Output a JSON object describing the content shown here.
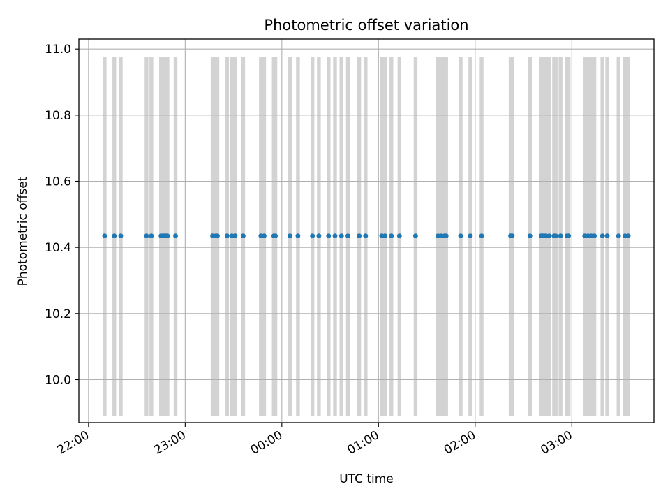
{
  "chart_data": {
    "type": "scatter",
    "title": "Photometric offset variation",
    "xlabel": "UTC time",
    "ylabel": "Photometric offset",
    "x_tick_labels": [
      "22:00",
      "23:00",
      "00:00",
      "01:00",
      "02:00",
      "03:00"
    ],
    "y_tick_labels": [
      "10.0",
      "10.2",
      "10.4",
      "10.6",
      "10.8",
      "11.0"
    ],
    "y_ticks": [
      10.0,
      10.2,
      10.4,
      10.6,
      10.8,
      11.0
    ],
    "ylim": [
      9.87,
      11.03
    ],
    "xlim": [
      "21:54",
      "03:51"
    ],
    "grid": true,
    "colors": {
      "points": "#1f77b4",
      "bars": "#d3d3d3",
      "grid": "#b0b0b0"
    },
    "bar_range": [
      9.89,
      10.975
    ],
    "series": [
      {
        "values": [
          {
            "x": "22:10",
            "y": 10.435
          },
          {
            "x": "22:16",
            "y": 10.435
          },
          {
            "x": "22:20",
            "y": 10.435
          },
          {
            "x": "22:36",
            "y": 10.435
          },
          {
            "x": "22:39",
            "y": 10.435
          },
          {
            "x": "22:45",
            "y": 10.435
          },
          {
            "x": "22:46",
            "y": 10.435
          },
          {
            "x": "22:47",
            "y": 10.435
          },
          {
            "x": "22:48",
            "y": 10.435
          },
          {
            "x": "22:49",
            "y": 10.435
          },
          {
            "x": "22:54",
            "y": 10.435
          },
          {
            "x": "23:17",
            "y": 10.435
          },
          {
            "x": "23:19",
            "y": 10.435
          },
          {
            "x": "23:20",
            "y": 10.435
          },
          {
            "x": "23:26",
            "y": 10.435
          },
          {
            "x": "23:29",
            "y": 10.435
          },
          {
            "x": "23:31",
            "y": 10.435
          },
          {
            "x": "23:36",
            "y": 10.435
          },
          {
            "x": "23:47",
            "y": 10.435
          },
          {
            "x": "23:49",
            "y": 10.435
          },
          {
            "x": "23:55",
            "y": 10.435
          },
          {
            "x": "23:56",
            "y": 10.435
          },
          {
            "x": "00:05",
            "y": 10.435
          },
          {
            "x": "00:10",
            "y": 10.435
          },
          {
            "x": "00:19",
            "y": 10.435
          },
          {
            "x": "00:23",
            "y": 10.435
          },
          {
            "x": "00:29",
            "y": 10.435
          },
          {
            "x": "00:33",
            "y": 10.435
          },
          {
            "x": "00:37",
            "y": 10.435
          },
          {
            "x": "00:41",
            "y": 10.435
          },
          {
            "x": "00:48",
            "y": 10.435
          },
          {
            "x": "00:52",
            "y": 10.435
          },
          {
            "x": "01:02",
            "y": 10.435
          },
          {
            "x": "01:04",
            "y": 10.435
          },
          {
            "x": "01:08",
            "y": 10.435
          },
          {
            "x": "01:13",
            "y": 10.435
          },
          {
            "x": "01:23",
            "y": 10.435
          },
          {
            "x": "01:37",
            "y": 10.435
          },
          {
            "x": "01:39",
            "y": 10.435
          },
          {
            "x": "01:41",
            "y": 10.435
          },
          {
            "x": "01:42",
            "y": 10.435
          },
          {
            "x": "01:51",
            "y": 10.435
          },
          {
            "x": "01:57",
            "y": 10.435
          },
          {
            "x": "02:04",
            "y": 10.435
          },
          {
            "x": "02:22",
            "y": 10.435
          },
          {
            "x": "02:23",
            "y": 10.435
          },
          {
            "x": "02:34",
            "y": 10.435
          },
          {
            "x": "02:41",
            "y": 10.435
          },
          {
            "x": "02:42",
            "y": 10.435
          },
          {
            "x": "02:43",
            "y": 10.435
          },
          {
            "x": "02:44",
            "y": 10.435
          },
          {
            "x": "02:46",
            "y": 10.435
          },
          {
            "x": "02:49",
            "y": 10.435
          },
          {
            "x": "02:50",
            "y": 10.435
          },
          {
            "x": "02:53",
            "y": 10.435
          },
          {
            "x": "02:57",
            "y": 10.435
          },
          {
            "x": "02:58",
            "y": 10.435
          },
          {
            "x": "03:08",
            "y": 10.435
          },
          {
            "x": "03:10",
            "y": 10.435
          },
          {
            "x": "03:12",
            "y": 10.435
          },
          {
            "x": "03:14",
            "y": 10.435
          },
          {
            "x": "03:19",
            "y": 10.435
          },
          {
            "x": "03:22",
            "y": 10.435
          },
          {
            "x": "03:29",
            "y": 10.435
          },
          {
            "x": "03:33",
            "y": 10.435
          },
          {
            "x": "03:35",
            "y": 10.435
          }
        ]
      }
    ]
  }
}
